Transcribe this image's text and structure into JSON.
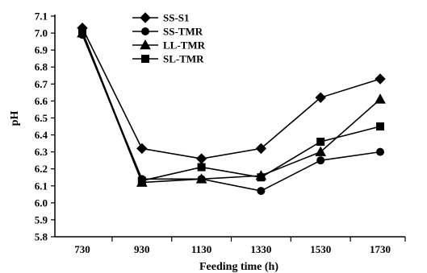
{
  "chart_data": {
    "type": "line",
    "x": [
      730,
      930,
      1130,
      1330,
      1530,
      1730
    ],
    "xlabel": "Feeding time (h)",
    "ylabel": "pH",
    "ylim": [
      5.8,
      7.1
    ],
    "yticks": [
      5.8,
      5.9,
      6.0,
      6.1,
      6.2,
      6.3,
      6.4,
      6.5,
      6.6,
      6.7,
      6.8,
      6.9,
      7.0,
      7.1
    ],
    "ytick_labels": [
      "5.8",
      "5.9",
      "6.0",
      "6.1",
      "6.2",
      "6.3",
      "6.4",
      "6.5",
      "6.6",
      "6.7",
      "6.8",
      "6.9",
      "7.0",
      "7.1"
    ],
    "xtick_labels": [
      "730",
      "930",
      "1130",
      "1330",
      "1530",
      "1730"
    ],
    "legend_position": "top-left",
    "grid": false,
    "series": [
      {
        "name": "SS-S1",
        "marker": "diamond",
        "values": [
          7.03,
          6.32,
          6.26,
          6.32,
          6.62,
          6.73
        ]
      },
      {
        "name": "SS-TMR",
        "marker": "circle",
        "values": [
          6.99,
          6.14,
          6.14,
          6.07,
          6.25,
          6.3
        ]
      },
      {
        "name": "LL-TMR",
        "marker": "triangle",
        "values": [
          7.0,
          6.12,
          6.14,
          6.16,
          6.3,
          6.61
        ]
      },
      {
        "name": "SL-TMR",
        "marker": "square",
        "values": [
          7.01,
          6.13,
          6.21,
          6.15,
          6.36,
          6.45
        ]
      }
    ]
  }
}
